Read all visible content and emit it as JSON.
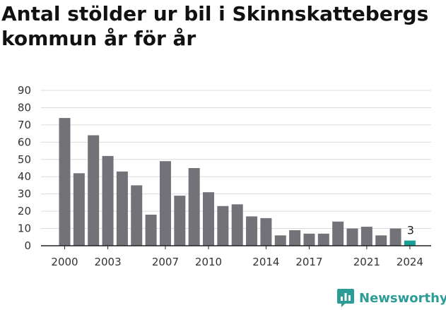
{
  "brand": {
    "name": "Newsworthy",
    "icon": "newsworthy-logo-icon",
    "color": "#2e9c96"
  },
  "chart_data": {
    "type": "bar",
    "title": "Antal stölder ur bil i Skinnskattebergs kommun år för år",
    "xlabel": "",
    "ylabel": "",
    "ylim": [
      0,
      90
    ],
    "yticks": [
      0,
      10,
      20,
      30,
      40,
      50,
      60,
      70,
      80,
      90
    ],
    "grid": true,
    "legend": "none",
    "x_tick_labels": [
      "2000",
      "2003",
      "2007",
      "2010",
      "2014",
      "2017",
      "2021",
      "2024"
    ],
    "categories": [
      "2000",
      "2001",
      "2002",
      "2003",
      "2004",
      "2005",
      "2006",
      "2007",
      "2008",
      "2009",
      "2010",
      "2011",
      "2012",
      "2013",
      "2014",
      "2015",
      "2016",
      "2017",
      "2018",
      "2019",
      "2020",
      "2021",
      "2022",
      "2023",
      "2024"
    ],
    "values": [
      74,
      42,
      64,
      52,
      43,
      35,
      18,
      49,
      29,
      45,
      31,
      23,
      24,
      17,
      16,
      6,
      9,
      7,
      7,
      14,
      10,
      11,
      6,
      10,
      3
    ],
    "bar_color": "#737278",
    "highlight_color": "#19a094",
    "highlight_category": "2024",
    "data_labels": [
      {
        "category": "2024",
        "text": "3"
      }
    ]
  }
}
